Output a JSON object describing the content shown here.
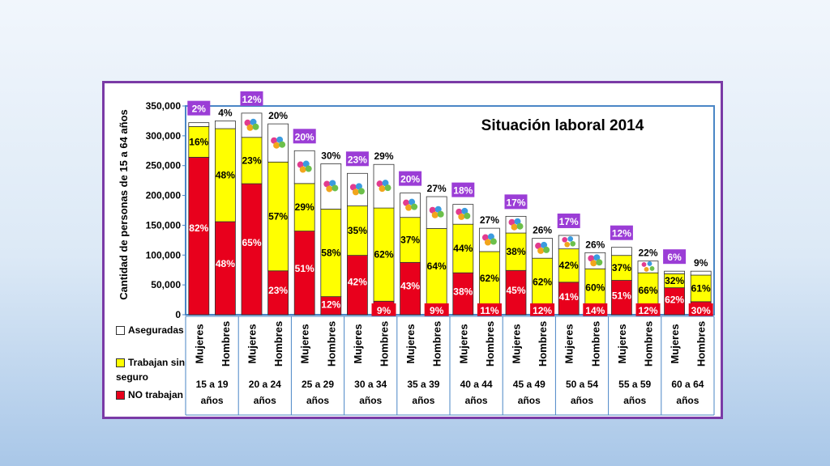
{
  "colors": {
    "no_trabajan": "#e8001c",
    "sin_seguro": "#ffff00",
    "aseguradas": "#ffffff",
    "frame": "#7a3aa6",
    "insured_label_bg": "#9b3dd6",
    "bottom_label_bg": "#e8001c"
  },
  "chart_data": {
    "type": "bar",
    "stacked": true,
    "title": "Situación laboral 2014",
    "ylabel": "Cantidad de personas de 15 a 64 años",
    "ylim": [
      0,
      350000
    ],
    "yticks": [
      "0",
      "50,000",
      "100,000",
      "150,000",
      "200,000",
      "250,000",
      "300,000",
      "350,000"
    ],
    "ytick_values": [
      0,
      50000,
      100000,
      150000,
      200000,
      250000,
      300000,
      350000
    ],
    "sex_labels": [
      "Mujeres",
      "Hombres"
    ],
    "age_groups": [
      "15 a 19 años",
      "20 a 24 años",
      "25 a 29 años",
      "30 a 34 años",
      "35 a 39 años",
      "40 a 44 años",
      "45 a 49 años",
      "50 a 54 años",
      "55 a 59 años",
      "60 a 64 años"
    ],
    "legend": [
      "Aseguradas",
      "Trabajan sin seguro",
      "NO trabajan"
    ],
    "bars": [
      {
        "group": "15 a 19 años",
        "sex": "Mujeres",
        "total": 322000,
        "pct": {
          "no_trabajan": "82%",
          "sin_seguro": "16%",
          "aseguradas": "2%"
        },
        "share": [
          0.82,
          0.16,
          0.02
        ]
      },
      {
        "group": "15 a 19 años",
        "sex": "Hombres",
        "total": 325000,
        "pct": {
          "no_trabajan": "48%",
          "sin_seguro": "48%",
          "aseguradas": "4%"
        },
        "share": [
          0.48,
          0.48,
          0.04
        ]
      },
      {
        "group": "20 a 24 años",
        "sex": "Mujeres",
        "total": 338000,
        "pct": {
          "no_trabajan": "65%",
          "sin_seguro": "23%",
          "aseguradas": "12%"
        },
        "share": [
          0.65,
          0.23,
          0.12
        ]
      },
      {
        "group": "20 a 24 años",
        "sex": "Hombres",
        "total": 320000,
        "pct": {
          "no_trabajan": "23%",
          "sin_seguro": "57%",
          "aseguradas": "20%"
        },
        "share": [
          0.23,
          0.57,
          0.2
        ]
      },
      {
        "group": "25 a 29 años",
        "sex": "Mujeres",
        "total": 275000,
        "pct": {
          "no_trabajan": "51%",
          "sin_seguro": "29%",
          "aseguradas": "20%"
        },
        "share": [
          0.51,
          0.29,
          0.2
        ]
      },
      {
        "group": "25 a 29 años",
        "sex": "Hombres",
        "total": 253000,
        "pct": {
          "no_trabajan": "12%",
          "sin_seguro": "58%",
          "aseguradas": "30%"
        },
        "share": [
          0.12,
          0.58,
          0.3
        ]
      },
      {
        "group": "30 a 34 años",
        "sex": "Mujeres",
        "total": 237000,
        "pct": {
          "no_trabajan": "42%",
          "sin_seguro": "35%",
          "aseguradas": "23%"
        },
        "share": [
          0.42,
          0.35,
          0.23
        ]
      },
      {
        "group": "30 a 34 años",
        "sex": "Hombres",
        "total": 252000,
        "pct": {
          "no_trabajan": "9%",
          "sin_seguro": "62%",
          "aseguradas": "29%"
        },
        "share": [
          0.09,
          0.62,
          0.29
        ]
      },
      {
        "group": "35 a 39 años",
        "sex": "Mujeres",
        "total": 204000,
        "pct": {
          "no_trabajan": "43%",
          "sin_seguro": "37%",
          "aseguradas": "20%"
        },
        "share": [
          0.43,
          0.37,
          0.2
        ]
      },
      {
        "group": "35 a 39 años",
        "sex": "Hombres",
        "total": 198000,
        "pct": {
          "no_trabajan": "9%",
          "sin_seguro": "64%",
          "aseguradas": "27%"
        },
        "share": [
          0.09,
          0.64,
          0.27
        ]
      },
      {
        "group": "40 a 44 años",
        "sex": "Mujeres",
        "total": 185000,
        "pct": {
          "no_trabajan": "38%",
          "sin_seguro": "44%",
          "aseguradas": "18%"
        },
        "share": [
          0.38,
          0.44,
          0.18
        ]
      },
      {
        "group": "40 a 44 años",
        "sex": "Hombres",
        "total": 145000,
        "pct": {
          "no_trabajan": "11%",
          "sin_seguro": "62%",
          "aseguradas": "27%"
        },
        "share": [
          0.11,
          0.62,
          0.27
        ]
      },
      {
        "group": "45 a 49 años",
        "sex": "Mujeres",
        "total": 165000,
        "pct": {
          "no_trabajan": "45%",
          "sin_seguro": "38%",
          "aseguradas": "17%"
        },
        "share": [
          0.45,
          0.38,
          0.17
        ]
      },
      {
        "group": "45 a 49 años",
        "sex": "Hombres",
        "total": 128000,
        "pct": {
          "no_trabajan": "12%",
          "sin_seguro": "62%",
          "aseguradas": "26%"
        },
        "share": [
          0.12,
          0.62,
          0.26
        ]
      },
      {
        "group": "50 a 54 años",
        "sex": "Mujeres",
        "total": 133000,
        "pct": {
          "no_trabajan": "41%",
          "sin_seguro": "42%",
          "aseguradas": "17%"
        },
        "share": [
          0.41,
          0.42,
          0.17
        ]
      },
      {
        "group": "50 a 54 años",
        "sex": "Hombres",
        "total": 104000,
        "pct": {
          "no_trabajan": "14%",
          "sin_seguro": "60%",
          "aseguradas": "26%"
        },
        "share": [
          0.14,
          0.6,
          0.26
        ]
      },
      {
        "group": "55 a 59 años",
        "sex": "Mujeres",
        "total": 113000,
        "pct": {
          "no_trabajan": "51%",
          "sin_seguro": "37%",
          "aseguradas": "12%"
        },
        "share": [
          0.51,
          0.37,
          0.12
        ]
      },
      {
        "group": "55 a 59 años",
        "sex": "Hombres",
        "total": 90000,
        "pct": {
          "no_trabajan": "12%",
          "sin_seguro": "66%",
          "aseguradas": "22%"
        },
        "share": [
          0.12,
          0.66,
          0.22
        ]
      },
      {
        "group": "60 a 64 años",
        "sex": "Mujeres",
        "total": 73000,
        "pct": {
          "no_trabajan": "62%",
          "sin_seguro": "32%",
          "aseguradas": "6%"
        },
        "share": [
          0.62,
          0.32,
          0.06
        ]
      },
      {
        "group": "60 a 64 años",
        "sex": "Hombres",
        "total": 73000,
        "pct": {
          "no_trabajan": "30%",
          "sin_seguro": "61%",
          "aseguradas": "9%"
        },
        "share": [
          0.3,
          0.61,
          0.09
        ]
      }
    ]
  }
}
